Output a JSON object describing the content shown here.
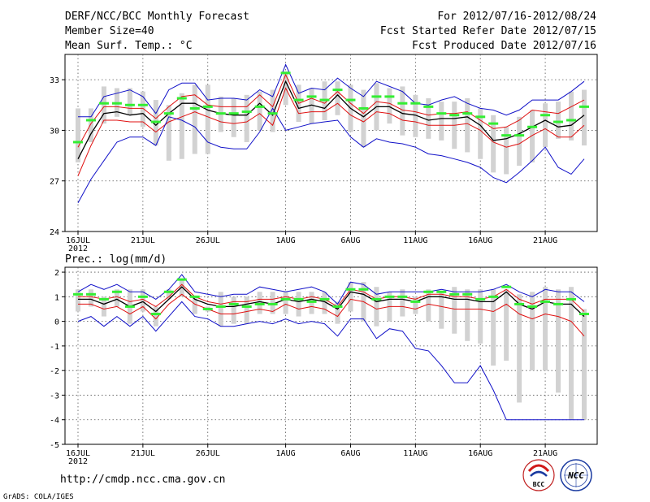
{
  "header": {
    "title": "DERF/NCC/BCC Monthly Forecast",
    "member_size": "Member Size=40",
    "variable": "Mean Surf. Temp.: °C",
    "period": "For 2012/07/16-2012/08/24",
    "started": "Fcst Started Refer Date 2012/07/15",
    "produced": "Fcst Produced Date 2012/07/16"
  },
  "footer": {
    "url": "http://cmdp.ncc.cma.gov.cn",
    "grads": "GrADS: COLA/IGES",
    "logo_bcc": "BCC",
    "logo_ncc": "NCC"
  },
  "colors": {
    "box": "#d2d2d2",
    "green": "#33ee33",
    "mean": "#000000",
    "red": "#e01010",
    "blue": "#1010c8"
  },
  "chart_data": [
    {
      "type": "line",
      "title": "Mean Surf. Temp.: °C",
      "x_tick_labels": [
        "16JUL",
        "21JUL",
        "26JUL",
        "1AUG",
        "6AUG",
        "11AUG",
        "16AUG",
        "21AUG"
      ],
      "x_tick_days": [
        1,
        6,
        11,
        17,
        22,
        27,
        32,
        37
      ],
      "year_label": "2012",
      "xlim": [
        1,
        40
      ],
      "ylim": [
        24,
        34.5
      ],
      "y_ticks": [
        24,
        27,
        30,
        33
      ],
      "days": [
        1,
        2,
        3,
        4,
        5,
        6,
        7,
        8,
        9,
        10,
        11,
        12,
        13,
        14,
        15,
        16,
        17,
        18,
        19,
        20,
        21,
        22,
        23,
        24,
        25,
        26,
        27,
        28,
        29,
        30,
        31,
        32,
        33,
        34,
        35,
        36,
        37,
        38,
        39,
        40
      ],
      "boxes": {
        "lo": [
          28.1,
          29.3,
          30.4,
          30.8,
          30.9,
          30.2,
          29.1,
          28.2,
          28.3,
          28.6,
          28.6,
          29.9,
          29.6,
          29.3,
          30.0,
          29.9,
          31.5,
          30.5,
          30.4,
          30.6,
          30.9,
          29.9,
          29.0,
          30.0,
          30.4,
          29.7,
          29.6,
          29.5,
          29.4,
          28.9,
          28.7,
          28.3,
          27.5,
          27.4,
          27.9,
          28.1,
          29.0,
          29.5,
          29.4,
          29.1
        ],
        "hi": [
          31.3,
          31.3,
          32.6,
          32.5,
          32.5,
          32.3,
          31.8,
          31.5,
          32.2,
          32.7,
          32.7,
          32.0,
          31.9,
          32.1,
          32.3,
          32.4,
          33.5,
          32.7,
          32.5,
          32.9,
          32.9,
          32.7,
          32.4,
          32.8,
          32.5,
          32.6,
          32.1,
          31.9,
          31.7,
          31.7,
          31.9,
          31.3,
          30.9,
          30.2,
          30.8,
          31.2,
          31.6,
          31.7,
          32.3,
          32.4
        ]
      },
      "series": [
        {
          "name": "control",
          "values": [
            29.3,
            30.6,
            31.6,
            31.6,
            31.5,
            31.5,
            30.5,
            31.0,
            31.9,
            31.3,
            31.4,
            31.0,
            31.0,
            31.1,
            31.4,
            31.0,
            33.4,
            31.8,
            32.0,
            31.8,
            32.4,
            31.8,
            31.3,
            32.0,
            32.0,
            31.6,
            31.6,
            31.4,
            31.0,
            30.9,
            31.0,
            30.8,
            30.4,
            29.7,
            29.7,
            30.2,
            30.9,
            30.5,
            30.6,
            31.4
          ]
        },
        {
          "name": "max",
          "values": [
            30.8,
            30.8,
            32.0,
            32.2,
            32.4,
            32.0,
            31.0,
            32.4,
            32.8,
            32.8,
            31.8,
            31.9,
            31.9,
            31.8,
            32.4,
            32.0,
            33.9,
            32.2,
            32.5,
            32.4,
            33.1,
            32.5,
            32.0,
            32.9,
            32.6,
            32.3,
            31.6,
            31.5,
            31.8,
            32.0,
            31.6,
            31.3,
            31.2,
            30.9,
            31.2,
            31.8,
            31.8,
            31.8,
            32.3,
            32.9
          ]
        },
        {
          "name": "upper",
          "values": [
            29.0,
            30.4,
            31.4,
            31.4,
            31.3,
            31.3,
            30.7,
            31.4,
            32.0,
            32.1,
            31.5,
            31.4,
            31.4,
            31.4,
            32.1,
            31.4,
            33.3,
            31.6,
            31.9,
            31.6,
            32.3,
            31.6,
            31.0,
            31.7,
            31.6,
            31.2,
            31.1,
            30.9,
            31.0,
            31.0,
            31.1,
            30.6,
            30.1,
            30.2,
            30.6,
            31.2,
            31.1,
            31.0,
            31.4,
            31.8
          ]
        },
        {
          "name": "mean",
          "values": [
            28.3,
            29.8,
            31.0,
            31.1,
            30.9,
            31.0,
            30.3,
            31.0,
            31.6,
            31.6,
            31.2,
            31.0,
            30.9,
            30.9,
            31.6,
            30.9,
            32.9,
            31.3,
            31.5,
            31.3,
            32.1,
            31.3,
            30.8,
            31.4,
            31.4,
            31.0,
            30.9,
            30.6,
            30.7,
            30.7,
            30.8,
            30.3,
            29.4,
            29.5,
            29.8,
            30.2,
            30.6,
            30.2,
            30.3,
            30.9
          ]
        },
        {
          "name": "lower",
          "values": [
            27.3,
            29.1,
            30.6,
            30.6,
            30.5,
            30.5,
            29.9,
            30.5,
            30.8,
            31.1,
            30.8,
            30.5,
            30.4,
            30.5,
            31.0,
            30.3,
            32.5,
            31.0,
            31.1,
            31.1,
            31.6,
            30.9,
            30.5,
            31.1,
            31.0,
            30.6,
            30.5,
            30.3,
            30.3,
            30.3,
            30.4,
            30.0,
            29.3,
            29.0,
            29.2,
            29.7,
            30.1,
            29.6,
            29.6,
            30.3
          ]
        },
        {
          "name": "min",
          "values": [
            25.7,
            27.1,
            28.2,
            29.3,
            29.6,
            29.6,
            29.1,
            30.8,
            30.6,
            30.2,
            29.3,
            29.0,
            28.9,
            28.9,
            29.9,
            31.3,
            30.0,
            30.2,
            30.4,
            30.5,
            30.6,
            29.6,
            29.0,
            29.5,
            29.3,
            29.2,
            29.0,
            28.6,
            28.5,
            28.3,
            28.1,
            27.8,
            27.2,
            26.9,
            27.5,
            28.2,
            29.0,
            27.8,
            27.4,
            28.3
          ]
        }
      ]
    },
    {
      "type": "line",
      "title": "Prec.: log(mm/d)",
      "x_tick_labels": [
        "16JUL",
        "21JUL",
        "26JUL",
        "1AUG",
        "6AUG",
        "11AUG",
        "16AUG",
        "21AUG"
      ],
      "x_tick_days": [
        1,
        6,
        11,
        17,
        22,
        27,
        32,
        37
      ],
      "year_label": "2012",
      "xlim": [
        1,
        40
      ],
      "ylim": [
        -5,
        2.2
      ],
      "y_ticks": [
        -5,
        -4,
        -3,
        -2,
        -1,
        0,
        1,
        2
      ],
      "days": [
        1,
        2,
        3,
        4,
        5,
        6,
        7,
        8,
        9,
        10,
        11,
        12,
        13,
        14,
        15,
        16,
        17,
        18,
        19,
        20,
        21,
        22,
        23,
        24,
        25,
        26,
        27,
        28,
        29,
        30,
        31,
        32,
        33,
        34,
        35,
        36,
        37,
        38,
        39,
        40
      ],
      "boxes": {
        "lo": [
          0.4,
          0.6,
          0.2,
          0.6,
          -0.1,
          0.4,
          -0.2,
          0.9,
          1.0,
          0.3,
          0.4,
          -0.2,
          -0.1,
          -0.1,
          0.3,
          0.3,
          0.3,
          0.2,
          0.3,
          0.3,
          -0.1,
          0.4,
          0.0,
          -0.2,
          0.0,
          0.2,
          0.3,
          0.0,
          -0.3,
          -0.5,
          -0.8,
          -0.9,
          -1.8,
          -1.6,
          -3.3,
          -2.0,
          -2.0,
          -2.9,
          -4.0,
          -4.0
        ],
        "hi": [
          1.3,
          1.3,
          1.0,
          1.3,
          1.3,
          1.3,
          0.6,
          1.3,
          1.7,
          1.0,
          0.6,
          1.2,
          1.0,
          1.0,
          1.2,
          1.2,
          1.2,
          1.2,
          1.2,
          1.2,
          0.8,
          1.6,
          1.6,
          1.4,
          1.2,
          1.3,
          1.0,
          1.3,
          1.2,
          1.4,
          1.3,
          1.3,
          1.3,
          1.3,
          1.1,
          1.2,
          1.4,
          1.3,
          1.4,
          0.5
        ]
      },
      "series": [
        {
          "name": "control",
          "values": [
            1.1,
            1.1,
            0.9,
            1.2,
            0.6,
            1.0,
            0.3,
            1.2,
            1.7,
            1.0,
            0.5,
            0.6,
            0.7,
            0.6,
            0.7,
            0.7,
            0.9,
            0.9,
            0.8,
            0.9,
            0.6,
            1.3,
            1.3,
            0.9,
            1.0,
            1.0,
            0.8,
            1.2,
            1.2,
            1.1,
            1.1,
            0.9,
            1.0,
            1.4,
            0.7,
            0.6,
            0.8,
            0.7,
            0.9,
            0.3
          ]
        },
        {
          "name": "max",
          "values": [
            1.2,
            1.5,
            1.3,
            1.5,
            1.2,
            1.2,
            0.9,
            1.3,
            1.9,
            1.2,
            1.1,
            1.0,
            1.1,
            1.1,
            1.4,
            1.3,
            1.2,
            1.3,
            1.4,
            1.2,
            0.7,
            1.6,
            1.5,
            1.1,
            1.2,
            1.2,
            1.2,
            1.2,
            1.3,
            1.2,
            1.2,
            1.2,
            1.3,
            1.5,
            1.2,
            1.0,
            1.3,
            1.2,
            1.2,
            0.8
          ]
        },
        {
          "name": "upper",
          "values": [
            1.0,
            1.0,
            0.9,
            1.0,
            0.8,
            0.9,
            0.6,
            1.0,
            1.5,
            1.0,
            0.8,
            0.7,
            0.8,
            0.8,
            0.9,
            0.9,
            1.0,
            0.9,
            1.0,
            0.9,
            0.6,
            1.3,
            1.2,
            0.9,
            1.0,
            1.0,
            0.9,
            1.1,
            1.1,
            1.0,
            1.0,
            0.9,
            1.0,
            1.3,
            0.9,
            0.7,
            0.9,
            0.9,
            0.9,
            0.4
          ]
        },
        {
          "name": "mean",
          "values": [
            0.9,
            0.9,
            0.7,
            0.9,
            0.6,
            0.8,
            0.4,
            0.9,
            1.4,
            0.9,
            0.7,
            0.6,
            0.6,
            0.7,
            0.8,
            0.7,
            0.9,
            0.8,
            0.9,
            0.8,
            0.5,
            1.2,
            1.1,
            0.8,
            0.9,
            0.9,
            0.8,
            1.0,
            1.0,
            0.9,
            0.9,
            0.8,
            0.8,
            1.2,
            0.7,
            0.5,
            0.8,
            0.7,
            0.7,
            0.2
          ]
        },
        {
          "name": "lower",
          "values": [
            0.7,
            0.7,
            0.5,
            0.6,
            0.3,
            0.6,
            0.1,
            0.7,
            1.1,
            0.7,
            0.5,
            0.3,
            0.3,
            0.4,
            0.5,
            0.4,
            0.7,
            0.5,
            0.6,
            0.5,
            0.2,
            0.9,
            0.8,
            0.5,
            0.6,
            0.6,
            0.5,
            0.7,
            0.6,
            0.5,
            0.5,
            0.5,
            0.4,
            0.7,
            0.3,
            0.1,
            0.3,
            0.2,
            0.0,
            -0.6
          ]
        },
        {
          "name": "min",
          "values": [
            0.0,
            0.2,
            -0.2,
            0.2,
            -0.2,
            0.2,
            -0.4,
            0.2,
            0.8,
            0.2,
            0.1,
            -0.2,
            -0.2,
            -0.1,
            0.0,
            -0.1,
            0.1,
            -0.1,
            0.0,
            -0.1,
            -0.6,
            0.1,
            0.1,
            -0.7,
            -0.3,
            -0.4,
            -1.1,
            -1.2,
            -1.8,
            -2.5,
            -2.5,
            -1.8,
            -2.8,
            -4.0,
            -4.0,
            -4.0,
            -4.0,
            -4.0,
            -4.0,
            -4.0
          ]
        }
      ]
    }
  ]
}
